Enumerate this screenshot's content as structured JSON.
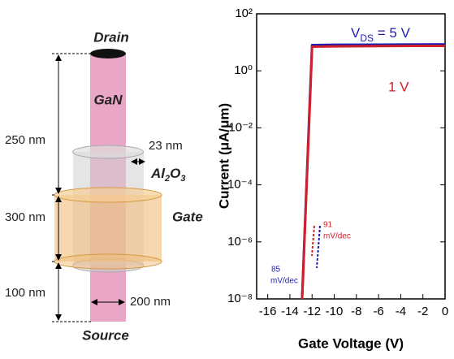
{
  "diagram": {
    "drain": "Drain",
    "gan": "GaN",
    "shell_thickness": "23 nm",
    "al2o3": [
      "Al",
      "2",
      "O",
      "3"
    ],
    "len_top": "250 nm",
    "len_gate": "300 nm",
    "gate": "Gate",
    "len_bottom": "100 nm",
    "diameter": "200 nm",
    "source": "Source"
  },
  "chart_data": {
    "type": "line",
    "x_label": "Gate Voltage (V)",
    "y_label": "Current (μA/μm)",
    "x": [
      -12.9,
      -12.8,
      -12.6,
      -12.4,
      -12.2,
      -12.0,
      -10,
      -6,
      -2,
      0
    ],
    "series": [
      {
        "color": "#1c1cb0",
        "values": [
          1e-08,
          1e-07,
          1e-05,
          0.001,
          0.1,
          8,
          8.2,
          8.3,
          8.4,
          8.5
        ]
      },
      {
        "color": "#d0202a",
        "values": [
          1e-08,
          8e-08,
          8e-06,
          0.0007,
          0.06,
          7,
          7.2,
          7.4,
          7.5,
          7.5
        ]
      }
    ],
    "log_y": true,
    "xlim": [
      -17,
      0
    ],
    "xticks": [
      -16,
      -14,
      -12,
      -10,
      -8,
      -6,
      -4,
      -2,
      0
    ],
    "ylim": [
      1e-08,
      100
    ],
    "yticks": [
      {
        "value": 1e-08,
        "label": "10⁻⁸"
      },
      {
        "value": 1e-06,
        "label": "10⁻⁶"
      },
      {
        "value": 0.0001,
        "label": "10⁻⁴"
      },
      {
        "value": 0.01,
        "label": "10⁻²"
      },
      {
        "value": 1,
        "label": "10⁰"
      },
      {
        "value": 100,
        "label": "10²"
      }
    ],
    "grid": false,
    "annotations": {
      "vds": [
        "V",
        "DS",
        " = 5 V"
      ],
      "v1": "1 V",
      "ss_red": [
        "91",
        "mV/dec"
      ],
      "ss_blue": [
        "85",
        "mV/dec"
      ]
    }
  }
}
